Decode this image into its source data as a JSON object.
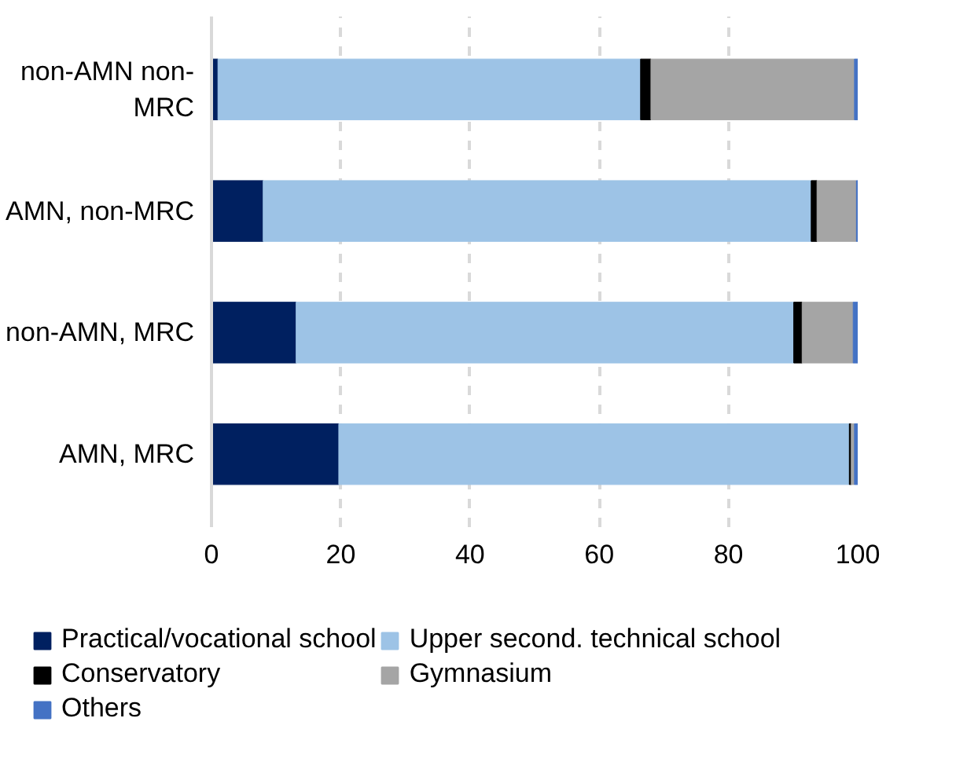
{
  "chart_data": {
    "type": "bar",
    "orientation": "horizontal",
    "stacked": true,
    "categories": [
      "non-AMN non-MRC",
      "AMN, non-MRC",
      "non-AMN, MRC",
      "AMN, MRC"
    ],
    "series": [
      {
        "name": "Practical/vocational school",
        "color": "#002060",
        "values": [
          1.0,
          8.0,
          13.1,
          19.7
        ]
      },
      {
        "name": "Upper second. technical school",
        "color": "#9dc3e6",
        "values": [
          65.4,
          84.8,
          77.0,
          79.0
        ]
      },
      {
        "name": "Conservatory",
        "color": "#000000",
        "values": [
          1.6,
          0.9,
          1.3,
          0.3
        ]
      },
      {
        "name": "Gymnasium",
        "color": "#a5a5a5",
        "values": [
          31.5,
          6.1,
          7.9,
          0.5
        ]
      },
      {
        "name": "Others",
        "color": "#4472c4",
        "values": [
          0.5,
          0.2,
          0.7,
          0.5
        ]
      }
    ],
    "xlim": [
      0,
      100
    ],
    "xticks": [
      0,
      20,
      40,
      60,
      80,
      100
    ],
    "grid": "x",
    "legend": "bottom"
  }
}
